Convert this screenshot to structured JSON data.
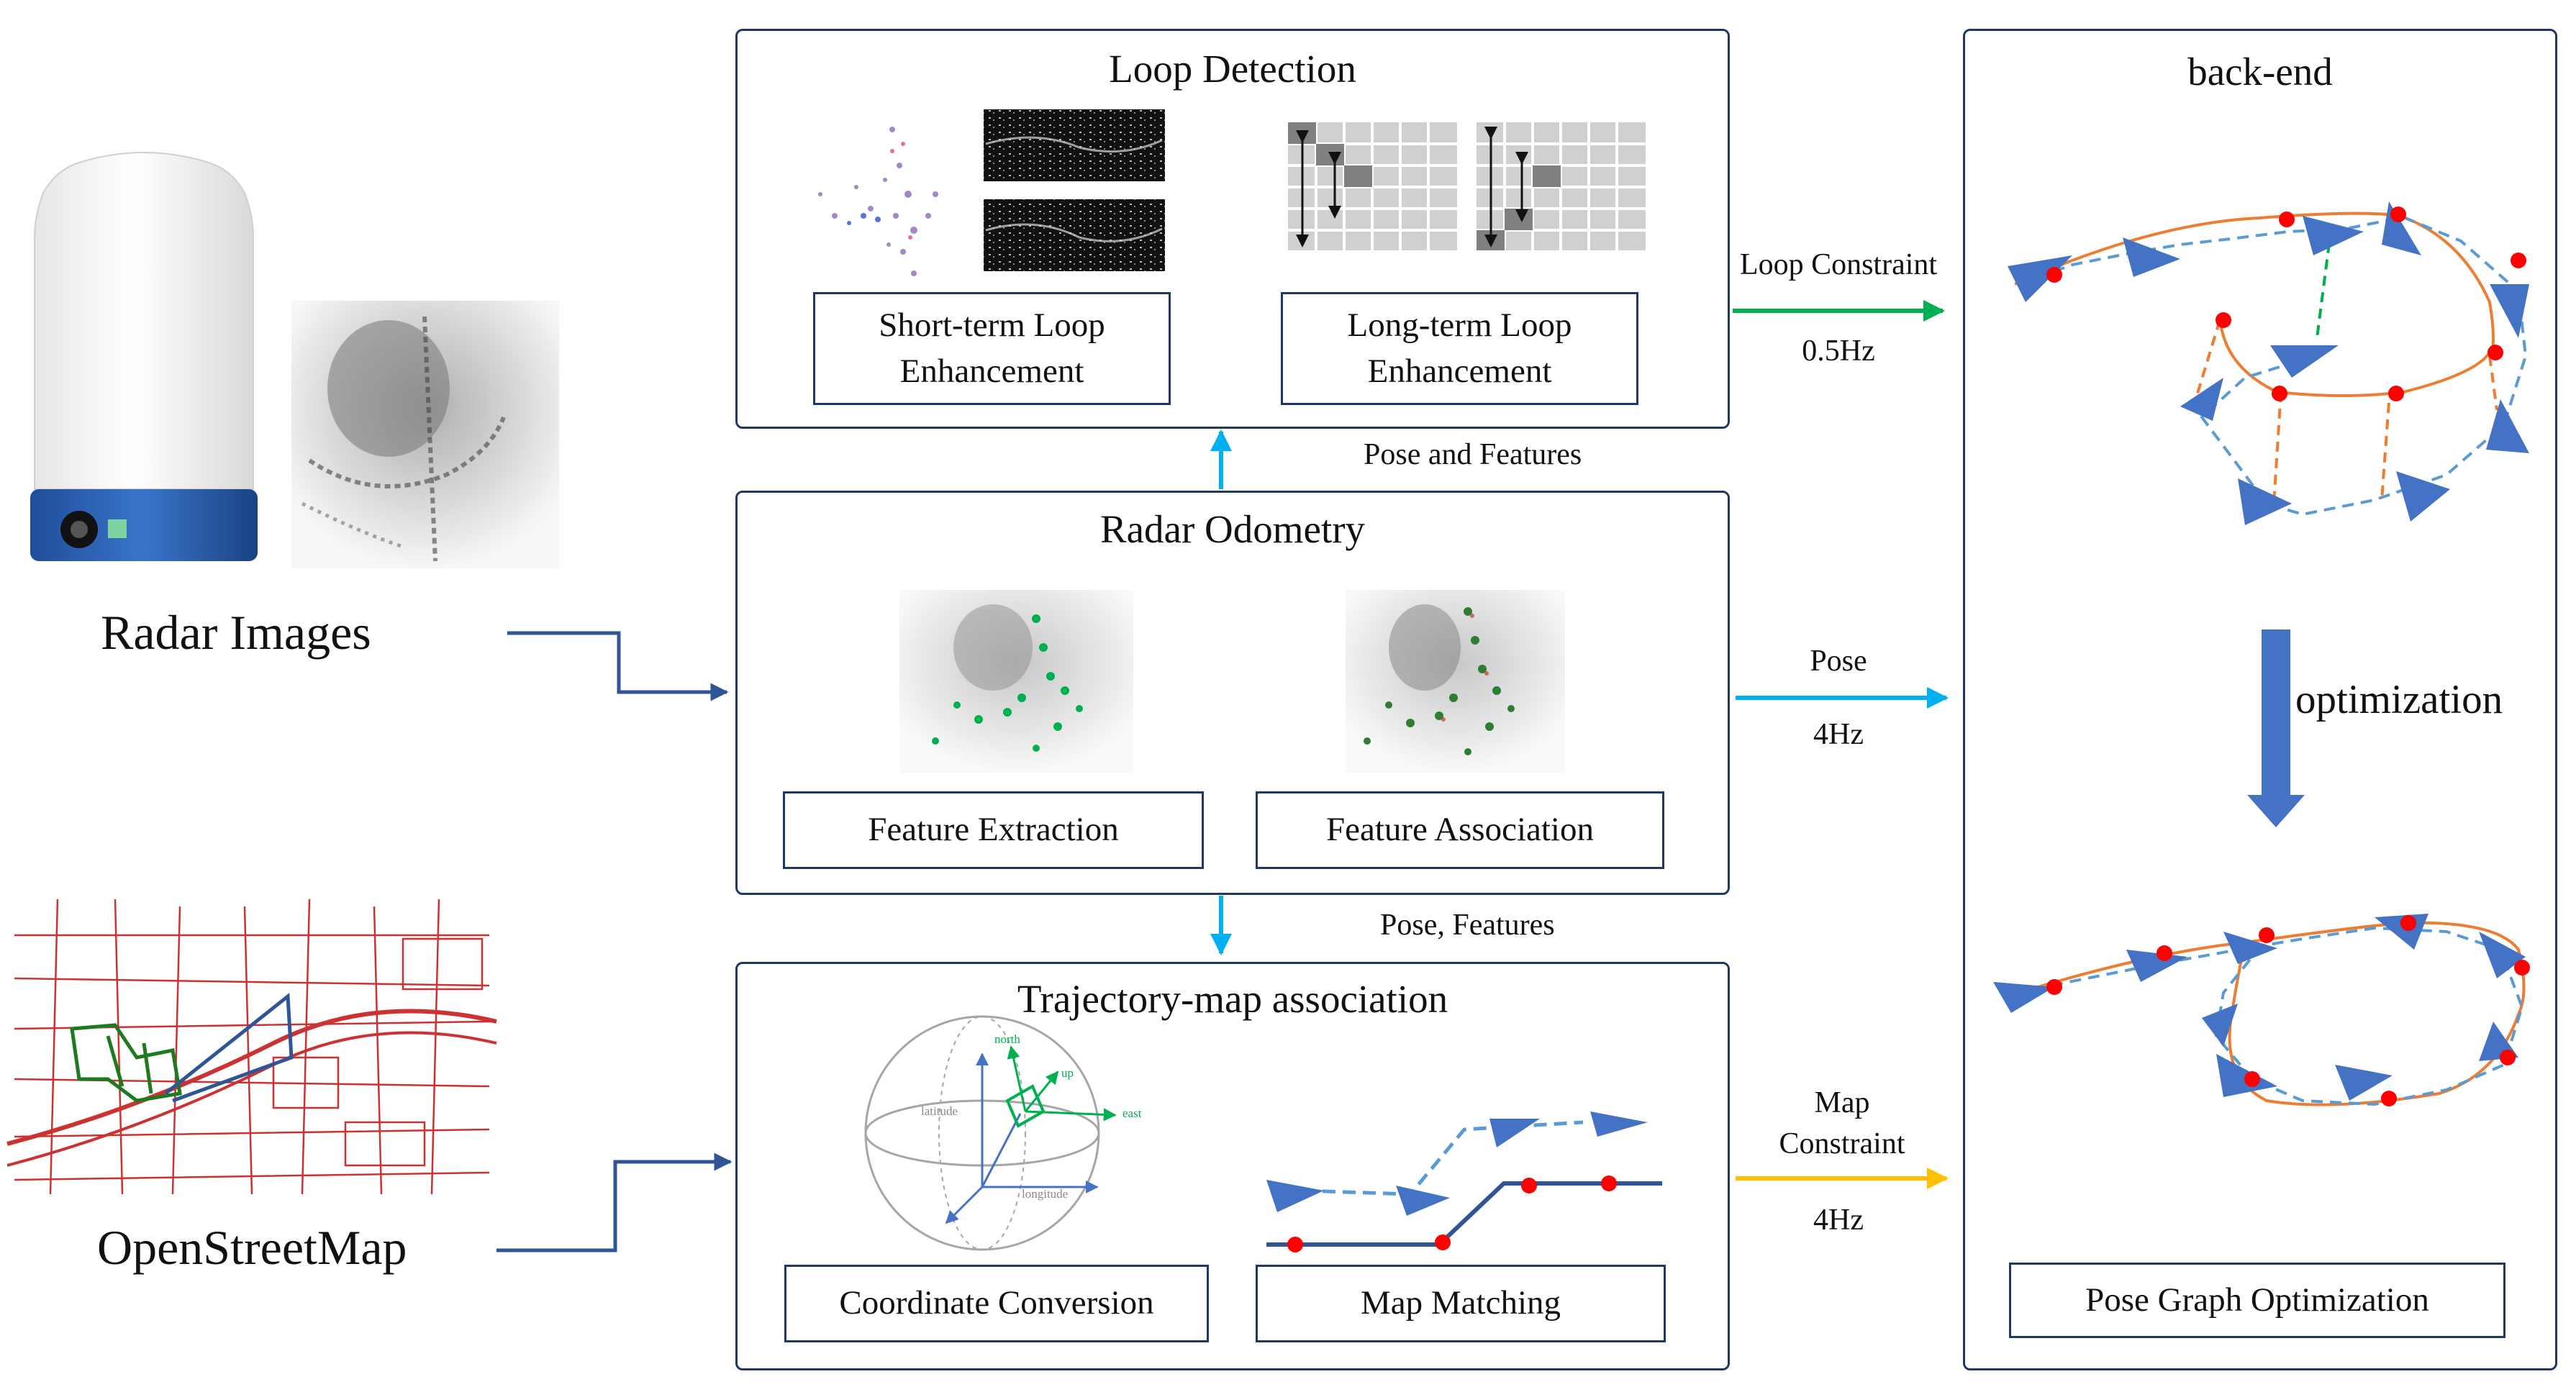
{
  "colors": {
    "box_border": "#1f3864",
    "flow_arrow": "#2f5597",
    "blue_arrow": "#00b0f0",
    "loop_arrow": "#00b050",
    "map_arrow": "#ffc000",
    "pose_triangle": "#4472c4",
    "node_red": "#ff0000",
    "traj_orange": "#ed7d31",
    "dashed_blue": "#5b9bd5",
    "feature_green": "#00b050",
    "osm_red": "#c00000"
  },
  "inputs": {
    "radar_label": "Radar Images",
    "osm_label": "OpenStreetMap"
  },
  "loop_detection": {
    "title": "Loop Detection",
    "short_term": "Short-term Loop Enhancement",
    "long_term": "Long-term Loop Enhancement"
  },
  "radar_odometry": {
    "title": "Radar Odometry",
    "feature_extraction": "Feature Extraction",
    "feature_association": "Feature Association"
  },
  "trajectory_map": {
    "title": "Trajectory-map association",
    "coordinate_conversion": "Coordinate Conversion",
    "map_matching": "Map Matching",
    "globe_labels": {
      "north": "north",
      "up": "up",
      "east": "east",
      "latitude": "latitude",
      "longitude": "longitude"
    }
  },
  "connectors": {
    "pose_and_features": "Pose and Features",
    "pose_features": "Pose, Features",
    "loop_constraint": "Loop Constraint",
    "loop_rate": "0.5Hz",
    "pose": "Pose",
    "pose_rate": "4Hz",
    "map_constraint": "Map Constraint",
    "map_rate": "4Hz"
  },
  "back_end": {
    "title": "back-end",
    "optimization": "optimization",
    "pgo": "Pose Graph Optimization"
  }
}
